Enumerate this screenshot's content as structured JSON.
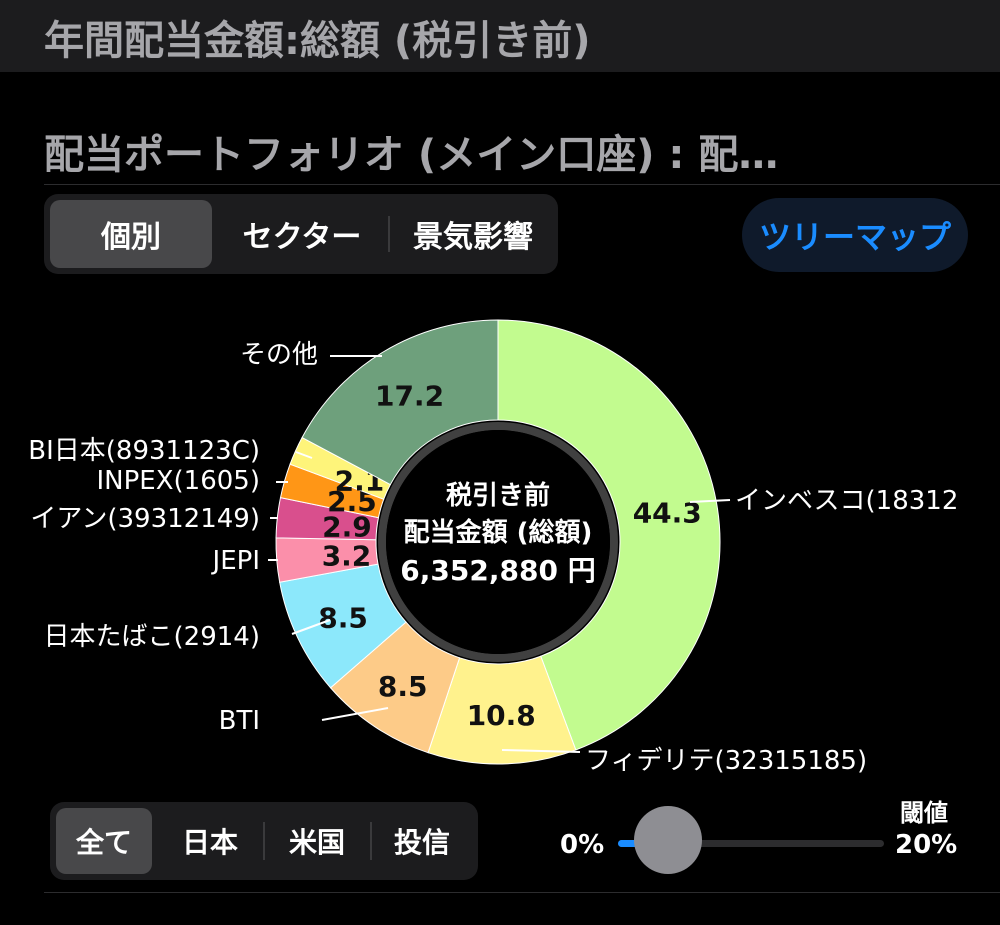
{
  "header": {
    "title": "年間配当金額:総額 (税引き前)"
  },
  "subtitle": "配当ポートフォリオ (メイン口座) : 配…",
  "view_tabs": [
    "個別",
    "セクター",
    "景気影響"
  ],
  "view_selected": 0,
  "treemap_button": "ツリーマップ",
  "center": {
    "line1": "税引き前",
    "line2": "配当金額 (総額)",
    "line3": "6,352,880 円"
  },
  "chart_data": {
    "type": "pie",
    "style": "donut",
    "unit": "%",
    "slices": [
      {
        "label": "インベスコ(18312",
        "value": 44.3,
        "color": "#c2fb8f"
      },
      {
        "label": "フィデリテ(32315185)",
        "value": 10.8,
        "color": "#fff28d"
      },
      {
        "label": "BTI",
        "value": 8.5,
        "color": "#fdcb88"
      },
      {
        "label": "日本たばこ(2914)",
        "value": 8.5,
        "color": "#8ce8fb"
      },
      {
        "label": "JEPI",
        "value": 3.2,
        "color": "#fb8faa"
      },
      {
        "label": "イアン(39312149)",
        "value": 2.9,
        "color": "#d94f8d"
      },
      {
        "label": "INPEX(1605)",
        "value": 2.5,
        "color": "#ff9616"
      },
      {
        "label": "BI日本(8931123C)",
        "value": 2.1,
        "color": "#fef47a"
      },
      {
        "label": "その他",
        "value": 17.2,
        "color": "#6ea07c"
      }
    ]
  },
  "filter_tabs": [
    "全て",
    "日本",
    "米国",
    "投信"
  ],
  "filter_selected": 0,
  "slider": {
    "title": "閾値",
    "min_label": "0%",
    "max_label": "20%",
    "value_percent": 0
  }
}
